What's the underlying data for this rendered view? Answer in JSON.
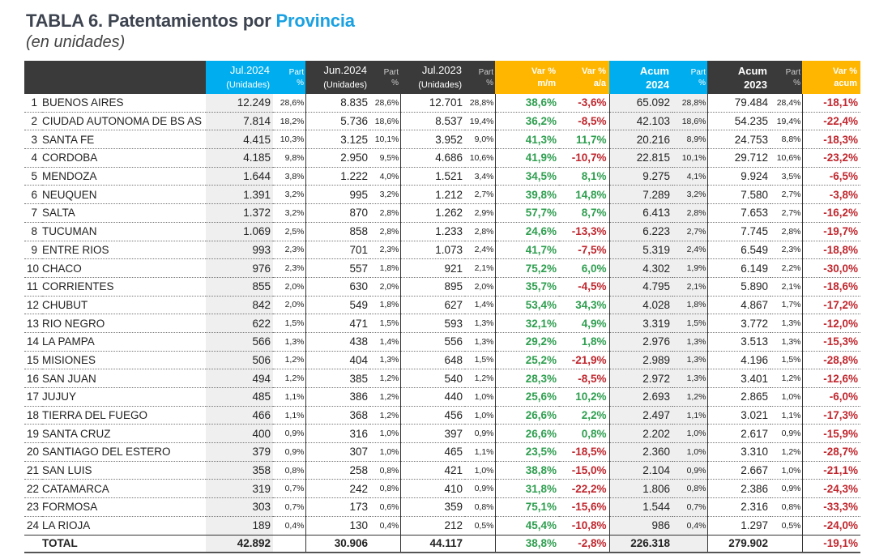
{
  "title": {
    "prefix": "TABLA 6. Patentamientos por ",
    "highlight": "Provincia"
  },
  "subtitle": "(en unidades)",
  "colors": {
    "header_dark": "#3a3a3a",
    "header_blue": "#00aeef",
    "header_orange": "#ffb600",
    "positive": "#2e9e4f",
    "negative": "#c0262d",
    "title_highlight": "#1ba1e2"
  },
  "headers": {
    "jul2024": "Jul.2024",
    "jun2024": "Jun.2024",
    "jul2023": "Jul.2023",
    "unidades": "(Unidades)",
    "part1": "Part",
    "part2": "%",
    "var_mm1": "Var %",
    "var_mm2": "m/m",
    "var_aa1": "Var %",
    "var_aa2": "a/a",
    "acum2024_1": "Acum",
    "acum2024_2": "2024",
    "acum2023_1": "Acum",
    "acum2023_2": "2023",
    "var_acum1": "Var %",
    "var_acum2": "acum"
  },
  "rows": [
    [
      "1",
      "BUENOS AIRES",
      "12.249",
      "28,6%",
      "8.835",
      "28,6%",
      "12.701",
      "28,8%",
      "38,6%",
      "-3,6%",
      "65.092",
      "28,8%",
      "79.484",
      "28,4%",
      "-18,1%"
    ],
    [
      "2",
      "CIUDAD AUTONOMA DE BS AS",
      "7.814",
      "18,2%",
      "5.736",
      "18,6%",
      "8.537",
      "19,4%",
      "36,2%",
      "-8,5%",
      "42.103",
      "18,6%",
      "54.235",
      "19,4%",
      "-22,4%"
    ],
    [
      "3",
      "SANTA FE",
      "4.415",
      "10,3%",
      "3.125",
      "10,1%",
      "3.952",
      "9,0%",
      "41,3%",
      "11,7%",
      "20.216",
      "8,9%",
      "24.753",
      "8,8%",
      "-18,3%"
    ],
    [
      "4",
      "CORDOBA",
      "4.185",
      "9,8%",
      "2.950",
      "9,5%",
      "4.686",
      "10,6%",
      "41,9%",
      "-10,7%",
      "22.815",
      "10,1%",
      "29.712",
      "10,6%",
      "-23,2%"
    ],
    [
      "5",
      "MENDOZA",
      "1.644",
      "3,8%",
      "1.222",
      "4,0%",
      "1.521",
      "3,4%",
      "34,5%",
      "8,1%",
      "9.275",
      "4,1%",
      "9.924",
      "3,5%",
      "-6,5%"
    ],
    [
      "6",
      "NEUQUEN",
      "1.391",
      "3,2%",
      "995",
      "3,2%",
      "1.212",
      "2,7%",
      "39,8%",
      "14,8%",
      "7.289",
      "3,2%",
      "7.580",
      "2,7%",
      "-3,8%"
    ],
    [
      "7",
      "SALTA",
      "1.372",
      "3,2%",
      "870",
      "2,8%",
      "1.262",
      "2,9%",
      "57,7%",
      "8,7%",
      "6.413",
      "2,8%",
      "7.653",
      "2,7%",
      "-16,2%"
    ],
    [
      "8",
      "TUCUMAN",
      "1.069",
      "2,5%",
      "858",
      "2,8%",
      "1.233",
      "2,8%",
      "24,6%",
      "-13,3%",
      "6.223",
      "2,7%",
      "7.745",
      "2,8%",
      "-19,7%"
    ],
    [
      "9",
      "ENTRE RIOS",
      "993",
      "2,3%",
      "701",
      "2,3%",
      "1.073",
      "2,4%",
      "41,7%",
      "-7,5%",
      "5.319",
      "2,4%",
      "6.549",
      "2,3%",
      "-18,8%"
    ],
    [
      "10",
      "CHACO",
      "976",
      "2,3%",
      "557",
      "1,8%",
      "921",
      "2,1%",
      "75,2%",
      "6,0%",
      "4.302",
      "1,9%",
      "6.149",
      "2,2%",
      "-30,0%"
    ],
    [
      "11",
      "CORRIENTES",
      "855",
      "2,0%",
      "630",
      "2,0%",
      "895",
      "2,0%",
      "35,7%",
      "-4,5%",
      "4.795",
      "2,1%",
      "5.890",
      "2,1%",
      "-18,6%"
    ],
    [
      "12",
      "CHUBUT",
      "842",
      "2,0%",
      "549",
      "1,8%",
      "627",
      "1,4%",
      "53,4%",
      "34,3%",
      "4.028",
      "1,8%",
      "4.867",
      "1,7%",
      "-17,2%"
    ],
    [
      "13",
      "RIO NEGRO",
      "622",
      "1,5%",
      "471",
      "1,5%",
      "593",
      "1,3%",
      "32,1%",
      "4,9%",
      "3.319",
      "1,5%",
      "3.772",
      "1,3%",
      "-12,0%"
    ],
    [
      "14",
      "LA PAMPA",
      "566",
      "1,3%",
      "438",
      "1,4%",
      "556",
      "1,3%",
      "29,2%",
      "1,8%",
      "2.976",
      "1,3%",
      "3.513",
      "1,3%",
      "-15,3%"
    ],
    [
      "15",
      "MISIONES",
      "506",
      "1,2%",
      "404",
      "1,3%",
      "648",
      "1,5%",
      "25,2%",
      "-21,9%",
      "2.989",
      "1,3%",
      "4.196",
      "1,5%",
      "-28,8%"
    ],
    [
      "16",
      "SAN JUAN",
      "494",
      "1,2%",
      "385",
      "1,2%",
      "540",
      "1,2%",
      "28,3%",
      "-8,5%",
      "2.972",
      "1,3%",
      "3.401",
      "1,2%",
      "-12,6%"
    ],
    [
      "17",
      "JUJUY",
      "485",
      "1,1%",
      "386",
      "1,2%",
      "440",
      "1,0%",
      "25,6%",
      "10,2%",
      "2.693",
      "1,2%",
      "2.865",
      "1,0%",
      "-6,0%"
    ],
    [
      "18",
      "TIERRA DEL FUEGO",
      "466",
      "1,1%",
      "368",
      "1,2%",
      "456",
      "1,0%",
      "26,6%",
      "2,2%",
      "2.497",
      "1,1%",
      "3.021",
      "1,1%",
      "-17,3%"
    ],
    [
      "19",
      "SANTA CRUZ",
      "400",
      "0,9%",
      "316",
      "1,0%",
      "397",
      "0,9%",
      "26,6%",
      "0,8%",
      "2.202",
      "1,0%",
      "2.617",
      "0,9%",
      "-15,9%"
    ],
    [
      "20",
      "SANTIAGO DEL ESTERO",
      "379",
      "0,9%",
      "307",
      "1,0%",
      "465",
      "1,1%",
      "23,5%",
      "-18,5%",
      "2.360",
      "1,0%",
      "3.310",
      "1,2%",
      "-28,7%"
    ],
    [
      "21",
      "SAN LUIS",
      "358",
      "0,8%",
      "258",
      "0,8%",
      "421",
      "1,0%",
      "38,8%",
      "-15,0%",
      "2.104",
      "0,9%",
      "2.667",
      "1,0%",
      "-21,1%"
    ],
    [
      "22",
      "CATAMARCA",
      "319",
      "0,7%",
      "242",
      "0,8%",
      "410",
      "0,9%",
      "31,8%",
      "-22,2%",
      "1.806",
      "0,8%",
      "2.386",
      "0,9%",
      "-24,3%"
    ],
    [
      "23",
      "FORMOSA",
      "303",
      "0,7%",
      "173",
      "0,6%",
      "359",
      "0,8%",
      "75,1%",
      "-15,6%",
      "1.544",
      "0,7%",
      "2.316",
      "0,8%",
      "-33,3%"
    ],
    [
      "24",
      "LA RIOJA",
      "189",
      "0,4%",
      "130",
      "0,4%",
      "212",
      "0,5%",
      "45,4%",
      "-10,8%",
      "986",
      "0,4%",
      "1.297",
      "0,5%",
      "-24,0%"
    ]
  ],
  "total": [
    "",
    "TOTAL",
    "42.892",
    "",
    "30.906",
    "",
    "44.117",
    "",
    "38,8%",
    "-2,8%",
    "226.318",
    "",
    "279.902",
    "",
    "-19,1%"
  ]
}
